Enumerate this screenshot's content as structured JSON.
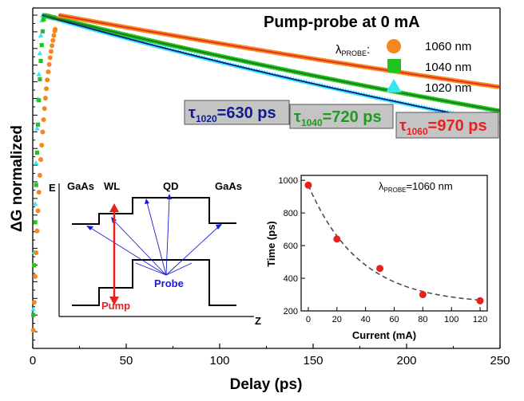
{
  "chart_data": [
    {
      "type": "scatter",
      "title": "Pump-probe at 0 mA",
      "xlabel": "Delay (ps)",
      "ylabel": "ΔG normalized",
      "xlim": [
        0,
        250
      ],
      "x_ticks": [
        "0",
        "50",
        "100",
        "150",
        "200",
        "250"
      ],
      "y_ticks_labeled": false,
      "legend": {
        "title_prefix": "λ",
        "title_sub": "PROBE",
        "title_suffix": ":",
        "placement": "top-right",
        "entries": [
          {
            "label": "1060 nm",
            "color": "#f6861f",
            "marker": "circle"
          },
          {
            "label": "1040 nm",
            "color": "#21c321",
            "marker": "square"
          },
          {
            "label": "1020 nm",
            "color": "#35e6f2",
            "marker": "triangle"
          }
        ]
      },
      "series": [
        {
          "name": "1060 nm",
          "color": "#f6861f",
          "fit_color": "#e03020",
          "tau_ps": 970,
          "peak_ps": 14,
          "rise_ps": 6,
          "end_value": 0.63
        },
        {
          "name": "1040 nm",
          "color": "#21c321",
          "fit_color": "#1a7a1a",
          "tau_ps": 720,
          "peak_ps": 6,
          "rise_ps": 3.5,
          "end_value": 0.52
        },
        {
          "name": "1020 nm",
          "color": "#35e6f2",
          "fit_color": "#0a1a8c",
          "tau_ps": 630,
          "peak_ps": 5,
          "rise_ps": 3,
          "end_value": 0.47
        }
      ],
      "annotations": [
        {
          "id": "tau1020",
          "symbol": "τ",
          "sub": "1020",
          "text": "=630 ps",
          "color": "#111a8e"
        },
        {
          "id": "tau1040",
          "symbol": "τ",
          "sub": "1040",
          "text": "=720 ps",
          "color": "#1e9a1e"
        },
        {
          "id": "tau1060",
          "symbol": "τ",
          "sub": "1060",
          "text": "=970 ps",
          "color": "#e8211c"
        }
      ]
    },
    {
      "type": "scatter",
      "title": "",
      "subtitle_prefix": "λ",
      "subtitle_sub": "PROBE",
      "subtitle_suffix": "=1060 nm",
      "xlabel": "Current (mA)",
      "ylabel": "Time (ps)",
      "xlim": [
        -5,
        125
      ],
      "ylim": [
        200,
        1030
      ],
      "x_ticks": [
        "0",
        "20",
        "40",
        "60",
        "80",
        "100",
        "120"
      ],
      "y_ticks": [
        "200",
        "400",
        "600",
        "800",
        "1000"
      ],
      "points": [
        {
          "x": 0,
          "y": 970
        },
        {
          "x": 20,
          "y": 640
        },
        {
          "x": 50,
          "y": 460
        },
        {
          "x": 80,
          "y": 300
        },
        {
          "x": 120,
          "y": 262
        }
      ],
      "fit": {
        "style": "dashed",
        "a": 240,
        "b": 730,
        "c": 36
      }
    }
  ],
  "diagram": {
    "axis_e": "E",
    "axis_z": "Z",
    "labels": {
      "gaas_left": "GaAs",
      "wl": "WL",
      "qd": "QD",
      "gaas_right": "GaAs",
      "probe": "Probe",
      "pump": "Pump"
    },
    "colors": {
      "pump": "#e8211c",
      "probe": "#1a1ad6"
    }
  }
}
